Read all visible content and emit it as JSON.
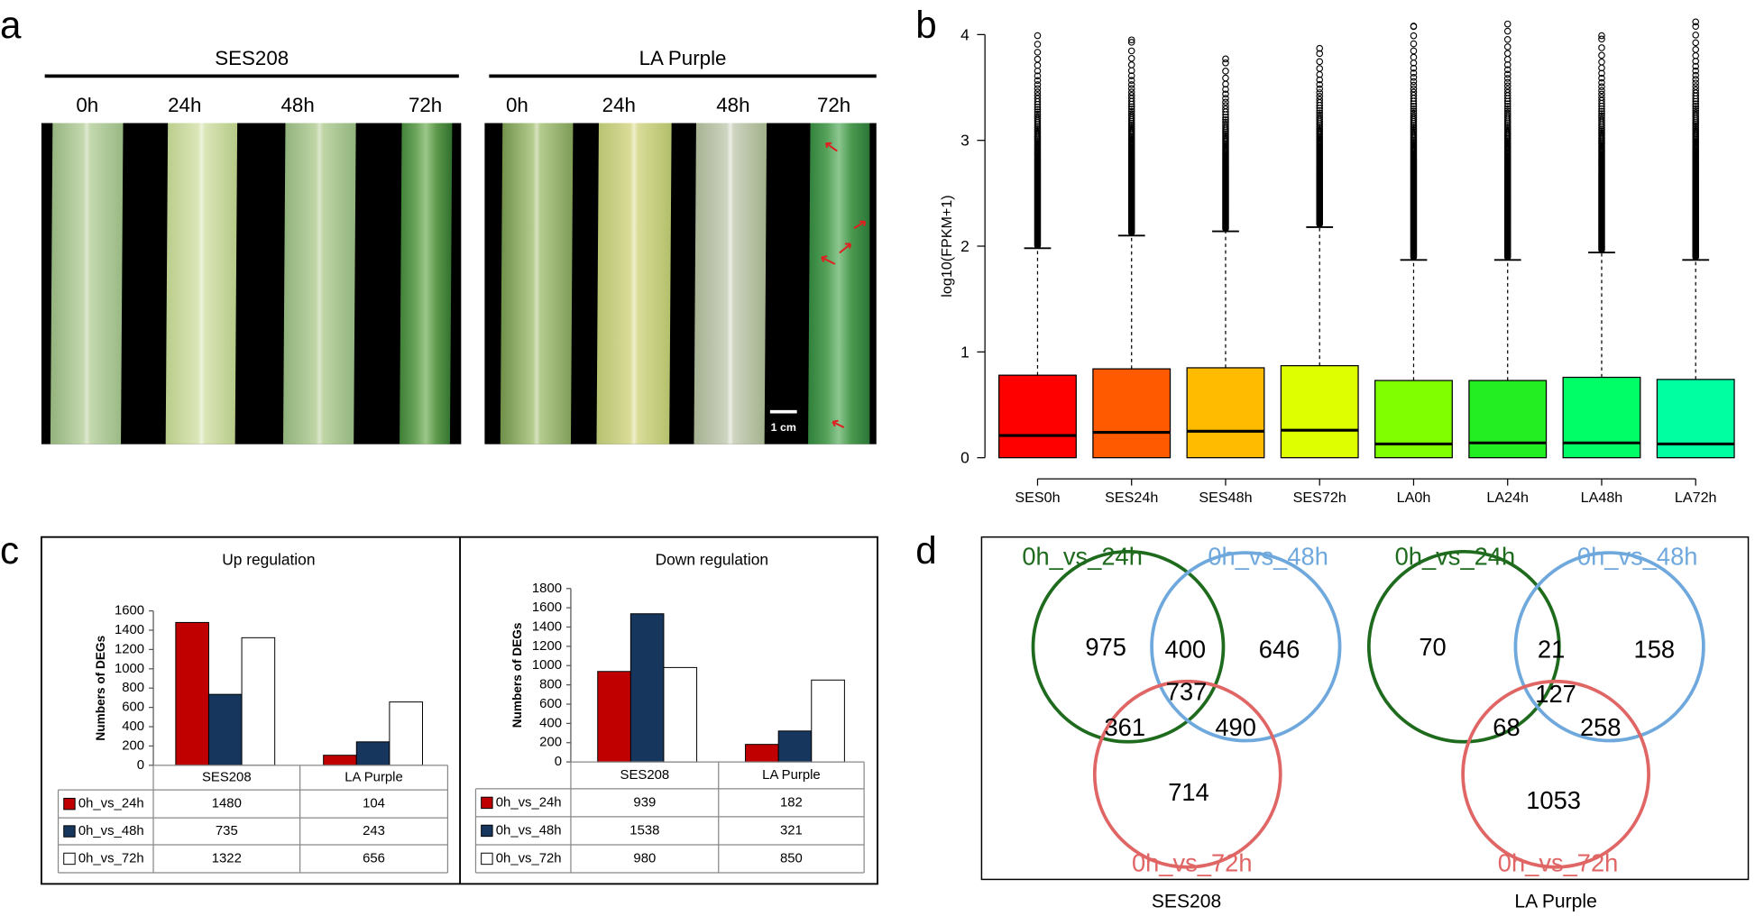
{
  "panel_labels": [
    "a",
    "b",
    "c",
    "d"
  ],
  "panel_a": {
    "groups": [
      {
        "name": "SES208",
        "times": [
          "0h",
          "24h",
          "48h",
          "72h"
        ]
      },
      {
        "name": "LA Purple",
        "times": [
          "0h",
          "24h",
          "48h",
          "72h"
        ]
      }
    ],
    "scale_bar": "1 cm"
  },
  "chart_data": [
    {
      "type": "box",
      "ylabel": "log10(FPKM+1)",
      "categories": [
        "SES0h",
        "SES24h",
        "SES48h",
        "SES72h",
        "LA0h",
        "LA24h",
        "LA48h",
        "LA72h"
      ],
      "colors": [
        "#ff0000",
        "#ff5a00",
        "#ffbb00",
        "#ddff00",
        "#80ff00",
        "#22ee22",
        "#00ff66",
        "#00ffa0"
      ],
      "min": [
        0,
        0,
        0,
        0,
        0,
        0,
        0,
        0
      ],
      "q1": [
        0,
        0,
        0,
        0,
        0,
        0,
        0,
        0
      ],
      "median": [
        0.21,
        0.24,
        0.25,
        0.26,
        0.13,
        0.14,
        0.14,
        0.13
      ],
      "q3": [
        0.78,
        0.84,
        0.85,
        0.87,
        0.73,
        0.73,
        0.76,
        0.74
      ],
      "whisker_high": [
        1.98,
        2.1,
        2.14,
        2.18,
        1.87,
        1.87,
        1.94,
        1.87
      ],
      "max_outlier": [
        3.99,
        3.95,
        3.77,
        3.87,
        4.08,
        4.1,
        3.99,
        4.12
      ],
      "ylim": [
        -0.2,
        4.2
      ],
      "yticks": [
        0,
        1,
        2,
        3,
        4
      ]
    },
    {
      "type": "bar",
      "title": "Up regulation",
      "ylabel": "Numbers of DEGs",
      "categories": [
        "SES208",
        "LA Purple"
      ],
      "series": [
        {
          "name": "0h_vs_24h",
          "color": "#c00000",
          "values": [
            1480,
            104
          ]
        },
        {
          "name": "0h_vs_48h",
          "color": "#17365d",
          "values": [
            735,
            243
          ]
        },
        {
          "name": "0h_vs_72h",
          "color": "#ffffff",
          "values": [
            1322,
            656
          ]
        }
      ],
      "ylim": [
        0,
        1600
      ],
      "yticks": [
        0,
        200,
        400,
        600,
        800,
        1000,
        1200,
        1400,
        1600
      ]
    },
    {
      "type": "bar",
      "title": "Down regulation",
      "ylabel": "Numbers of DEGs",
      "categories": [
        "SES208",
        "LA Purple"
      ],
      "series": [
        {
          "name": "0h_vs_24h",
          "color": "#c00000",
          "values": [
            939,
            182
          ]
        },
        {
          "name": "0h_vs_48h",
          "color": "#17365d",
          "values": [
            1538,
            321
          ]
        },
        {
          "name": "0h_vs_72h",
          "color": "#ffffff",
          "values": [
            980,
            850
          ]
        }
      ],
      "ylim": [
        0,
        1800
      ],
      "yticks": [
        0,
        200,
        400,
        600,
        800,
        1000,
        1200,
        1400,
        1600,
        1800
      ]
    }
  ],
  "panel_d": {
    "venns": [
      {
        "title": "SES208",
        "sets": [
          {
            "name": "0h_vs_24h",
            "color": "#1e6b1e"
          },
          {
            "name": "0h_vs_48h",
            "color": "#6fa8dc"
          },
          {
            "name": "0h_vs_72h",
            "color": "#e06666"
          }
        ],
        "regions": [
          975,
          400,
          646,
          737,
          361,
          490,
          714
        ]
      },
      {
        "title": "LA Purple",
        "sets": [
          {
            "name": "0h_vs_24h",
            "color": "#1e6b1e"
          },
          {
            "name": "0h_vs_48h",
            "color": "#6fa8dc"
          },
          {
            "name": "0h_vs_72h",
            "color": "#e06666"
          }
        ],
        "regions": [
          70,
          21,
          158,
          127,
          68,
          258,
          1053
        ]
      }
    ]
  }
}
